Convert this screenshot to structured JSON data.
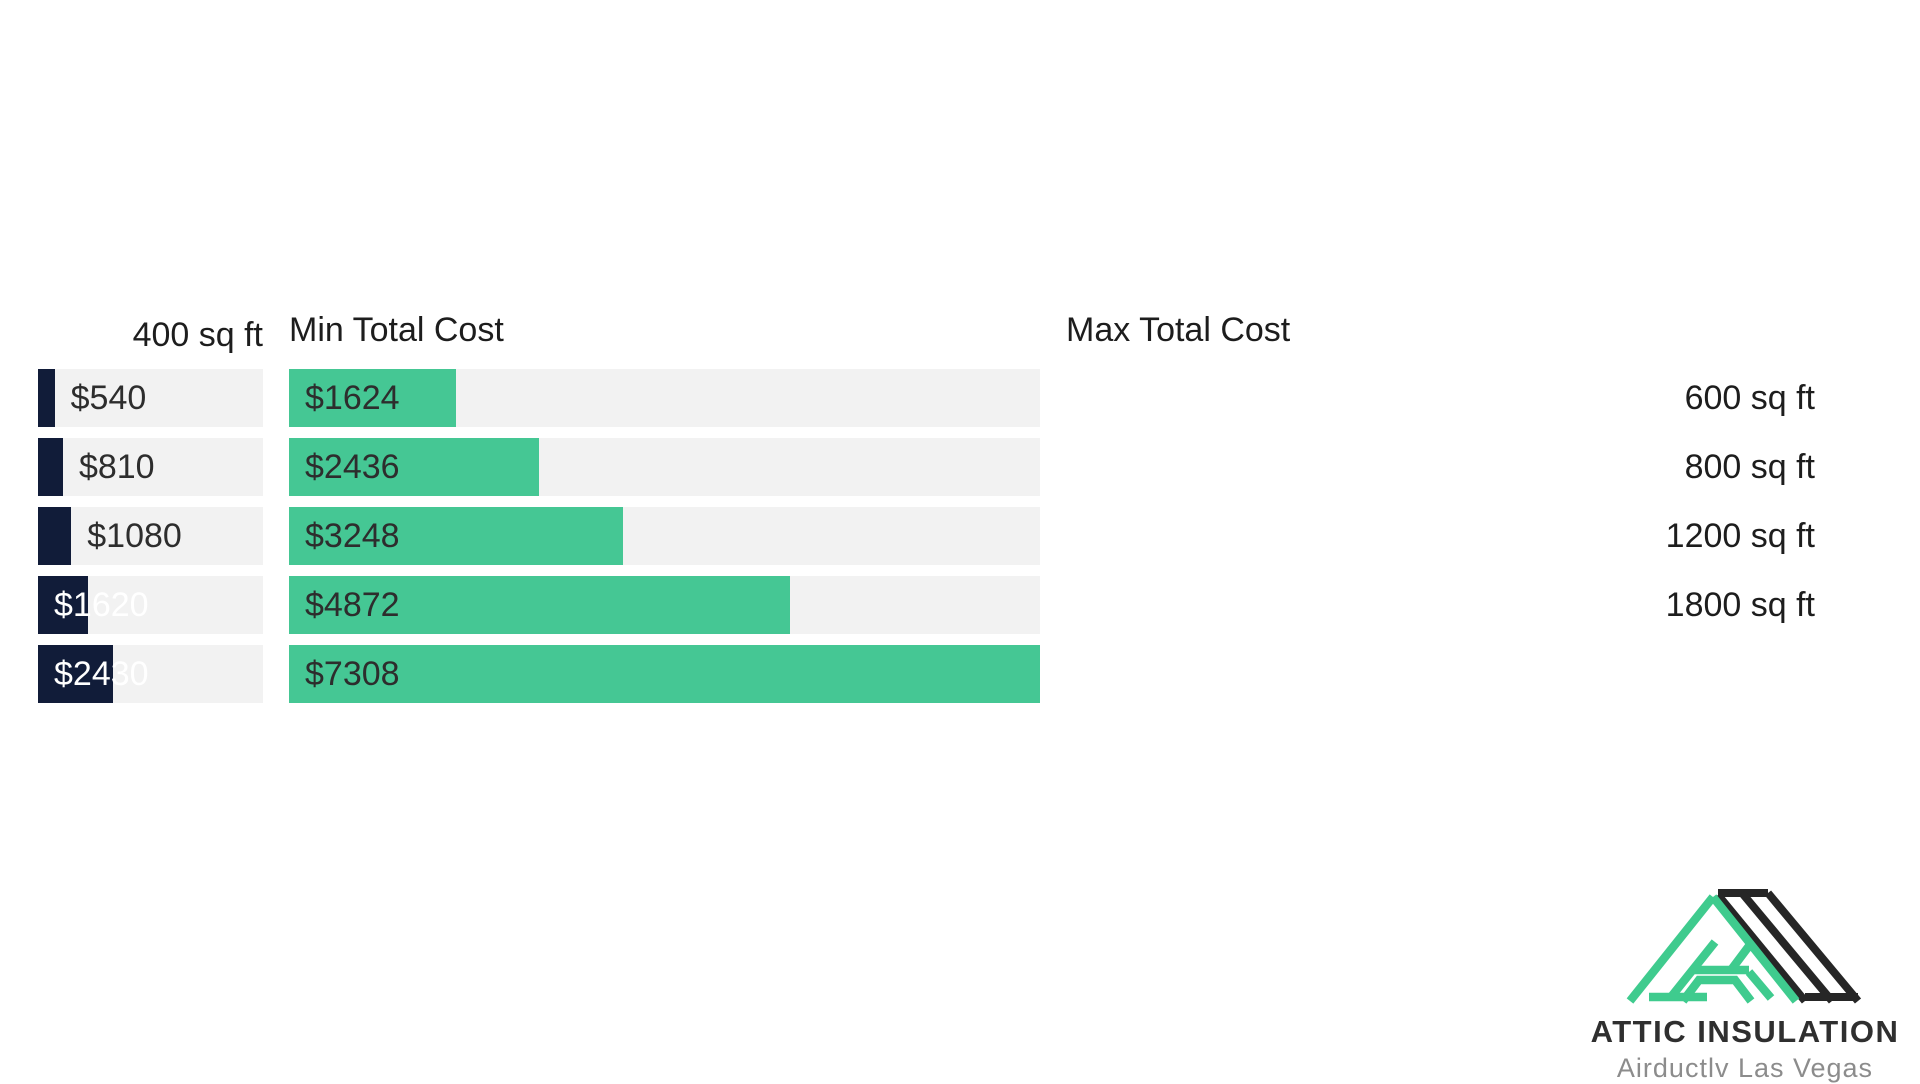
{
  "chart_data": {
    "type": "bar",
    "orientation": "horizontal",
    "categories": [
      "400 sq ft",
      "600 sq ft",
      "800 sq ft",
      "1200 sq ft",
      "1800 sq ft"
    ],
    "series": [
      {
        "name": "Min Total Cost",
        "values": [
          540,
          810,
          1080,
          1620,
          2430
        ],
        "labels": [
          "$540",
          "$810",
          "$1080",
          "$1620",
          "$2430"
        ],
        "label_inside": [
          false,
          false,
          false,
          true,
          true
        ],
        "bar_color": "#111c39",
        "inside_text_color": "#ffffff"
      },
      {
        "name": "Max Total Cost",
        "values": [
          1624,
          2436,
          3248,
          4872,
          7308
        ],
        "labels": [
          "$1624",
          "$2436",
          "$3248",
          "$4872",
          "$7308"
        ],
        "label_inside": [
          true,
          true,
          true,
          true,
          true
        ],
        "bar_color": "#45c794",
        "inside_text_color": "#2d2d2d"
      }
    ],
    "xlim": [
      0,
      7308
    ],
    "grid": false,
    "legend_position": "column-headers",
    "track_color": "#f2f2f2",
    "outside_text_color": "#2d2d2d",
    "category_text_color": "#1d1d1d"
  },
  "branding": {
    "title": "ATTIC INSULATION",
    "subtitle": "Airductlv Las Vegas",
    "logo_green": "#3fcb8e",
    "logo_dark": "#262626"
  }
}
